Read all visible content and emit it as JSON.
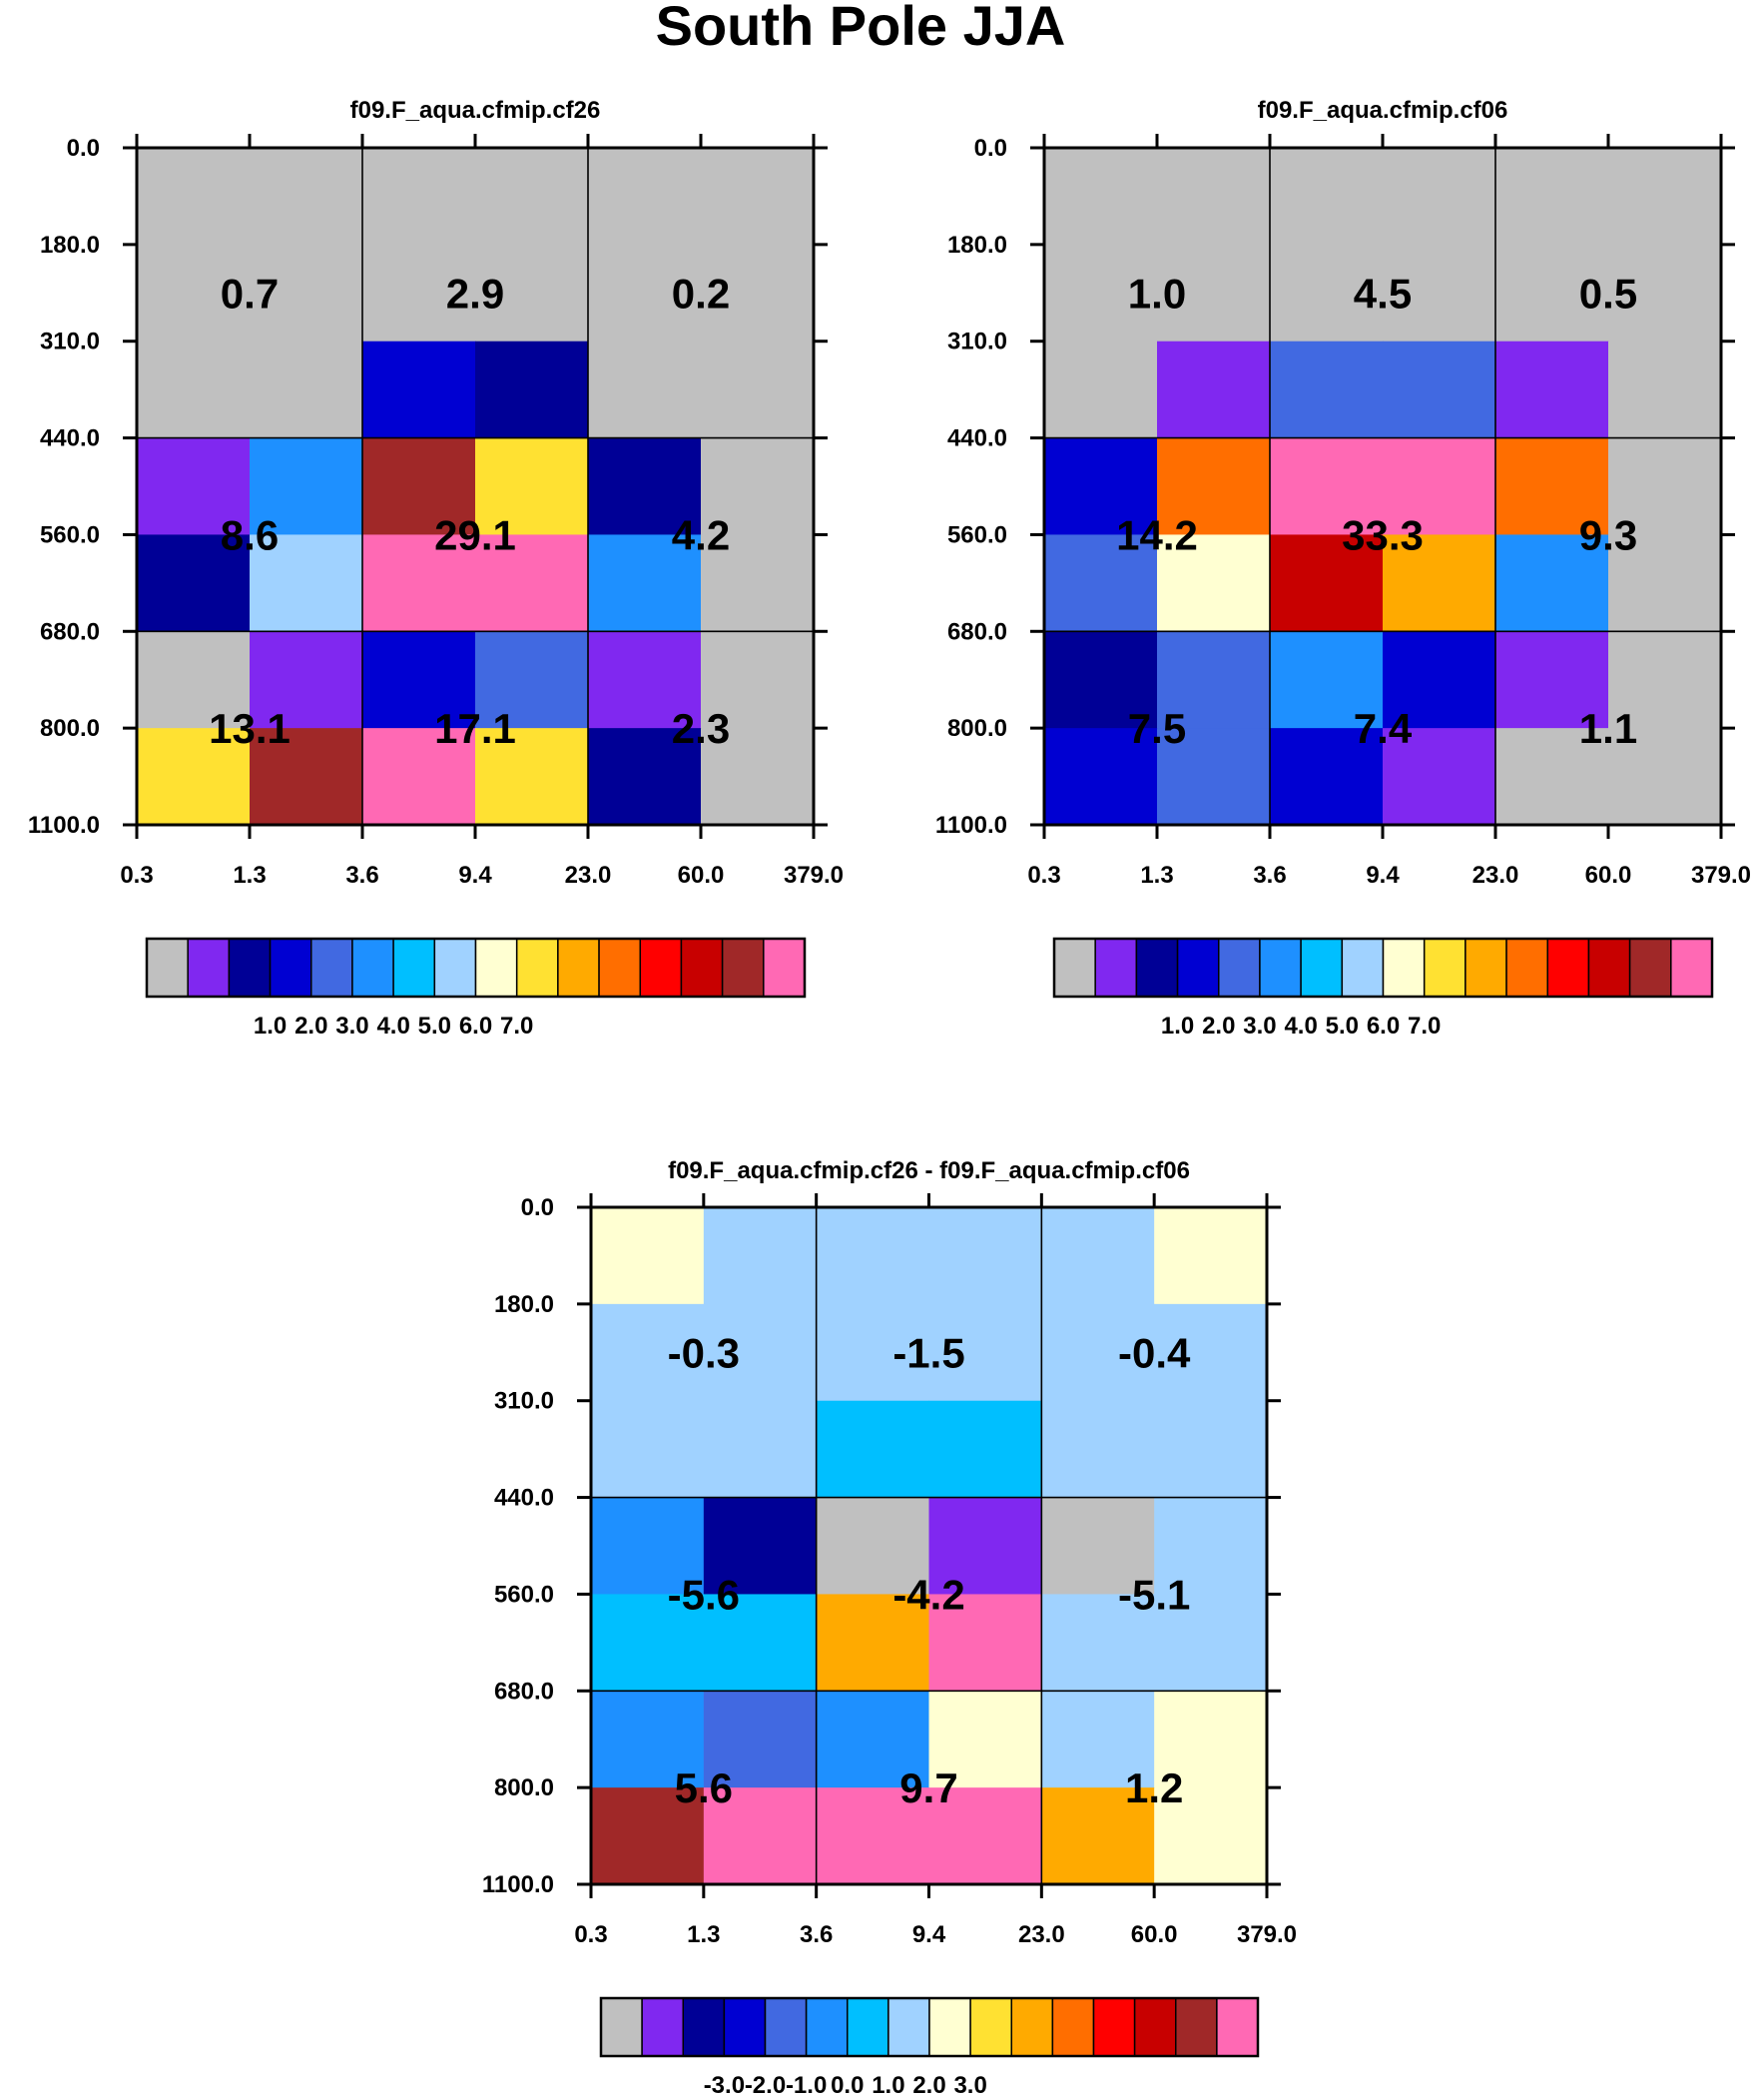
{
  "title": "South Pole JJA",
  "colors": {
    "palette": [
      "#c0c0c0",
      "#8028f0",
      "#000096",
      "#0000d2",
      "#4169e1",
      "#1e90ff",
      "#00bfff",
      "#a0d2ff",
      "#ffffd2",
      "#ffe132",
      "#ffaa00",
      "#ff6e00",
      "#ff0000",
      "#c80000",
      "#a02828",
      "#ff69b4"
    ]
  },
  "chart_data": [
    {
      "type": "heatmap",
      "title": "f09.F_aqua.cfmip.cf26",
      "x_ticks": [
        "0.3",
        "1.3",
        "3.6",
        "9.4",
        "23.0",
        "60.0",
        "379.0"
      ],
      "y_ticks": [
        "0.0",
        "180.0",
        "310.0",
        "440.0",
        "560.0",
        "680.0",
        "800.0",
        "1100.0"
      ],
      "cell_color_index": [
        [
          0,
          0,
          0,
          0,
          0,
          0
        ],
        [
          0,
          0,
          0,
          0,
          0,
          0
        ],
        [
          0,
          0,
          3,
          2,
          0,
          0
        ],
        [
          1,
          5,
          14,
          9,
          2,
          0
        ],
        [
          2,
          7,
          15,
          15,
          5,
          0
        ],
        [
          0,
          1,
          3,
          4,
          1,
          0
        ],
        [
          9,
          14,
          15,
          9,
          2,
          0
        ]
      ],
      "block_values": [
        [
          "0.7",
          "2.9",
          "0.2"
        ],
        [
          "8.6",
          "29.1",
          "4.2"
        ],
        [
          "13.1",
          "17.1",
          "2.3"
        ]
      ],
      "colorbar_labels": [
        "1.0",
        "2.0",
        "3.0",
        "4.0",
        "5.0",
        "6.0",
        "7.0"
      ]
    },
    {
      "type": "heatmap",
      "title": "f09.F_aqua.cfmip.cf06",
      "x_ticks": [
        "0.3",
        "1.3",
        "3.6",
        "9.4",
        "23.0",
        "60.0",
        "379.0"
      ],
      "y_ticks": [
        "0.0",
        "180.0",
        "310.0",
        "440.0",
        "560.0",
        "680.0",
        "800.0",
        "1100.0"
      ],
      "cell_color_index": [
        [
          0,
          0,
          0,
          0,
          0,
          0
        ],
        [
          0,
          0,
          0,
          0,
          0,
          0
        ],
        [
          0,
          1,
          4,
          4,
          1,
          0
        ],
        [
          3,
          11,
          15,
          15,
          11,
          0
        ],
        [
          4,
          8,
          13,
          10,
          5,
          0
        ],
        [
          2,
          4,
          5,
          3,
          1,
          0
        ],
        [
          3,
          4,
          3,
          1,
          0,
          0
        ]
      ],
      "block_values": [
        [
          "1.0",
          "4.5",
          "0.5"
        ],
        [
          "14.2",
          "33.3",
          "9.3"
        ],
        [
          "7.5",
          "7.4",
          "1.1"
        ]
      ],
      "colorbar_labels": [
        "1.0",
        "2.0",
        "3.0",
        "4.0",
        "5.0",
        "6.0",
        "7.0"
      ]
    },
    {
      "type": "heatmap",
      "title": "f09.F_aqua.cfmip.cf26 - f09.F_aqua.cfmip.cf06",
      "x_ticks": [
        "0.3",
        "1.3",
        "3.6",
        "9.4",
        "23.0",
        "60.0",
        "379.0"
      ],
      "y_ticks": [
        "0.0",
        "180.0",
        "310.0",
        "440.0",
        "560.0",
        "680.0",
        "800.0",
        "1100.0"
      ],
      "cell_color_index": [
        [
          8,
          7,
          7,
          7,
          7,
          8
        ],
        [
          7,
          7,
          7,
          7,
          7,
          7
        ],
        [
          7,
          7,
          6,
          6,
          7,
          7
        ],
        [
          5,
          2,
          0,
          1,
          0,
          7
        ],
        [
          6,
          6,
          10,
          15,
          7,
          7
        ],
        [
          5,
          4,
          5,
          8,
          7,
          8
        ],
        [
          14,
          15,
          15,
          15,
          10,
          8
        ]
      ],
      "block_values": [
        [
          "-0.3",
          "-1.5",
          "-0.4"
        ],
        [
          "-5.6",
          "-4.2",
          "-5.1"
        ],
        [
          "5.6",
          "9.7",
          "1.2"
        ]
      ],
      "colorbar_labels": [
        "-3.0",
        "-2.0",
        "-1.0",
        "0.0",
        "1.0",
        "2.0",
        "3.0"
      ]
    }
  ]
}
